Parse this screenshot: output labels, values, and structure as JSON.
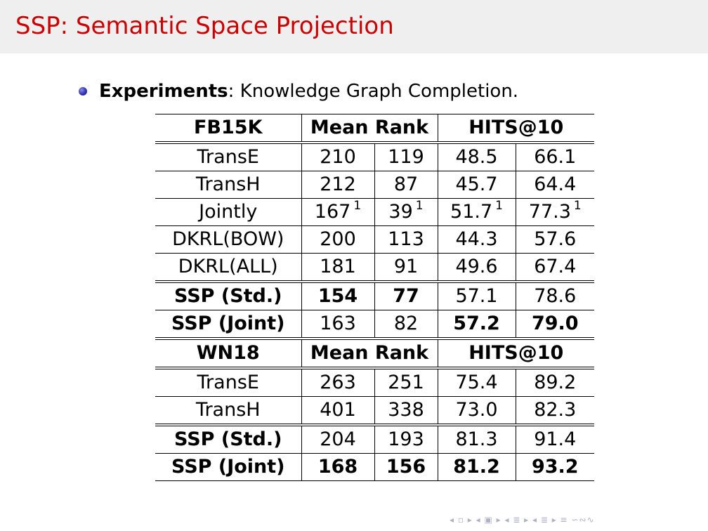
{
  "title": "SSP: Semantic Space Projection",
  "bullet": {
    "label": "Experiments",
    "text": ": Knowledge Graph Completion."
  },
  "tables": {
    "fb15k": {
      "header": [
        "FB15K",
        "Mean Rank",
        "HITS@10"
      ],
      "rows": [
        {
          "model": "TransE",
          "mr1": "210",
          "mr2": "119",
          "h1": "48.5",
          "h2": "66.1"
        },
        {
          "model": "TransH",
          "mr1": "212",
          "mr2": "87",
          "h1": "45.7",
          "h2": "64.4"
        },
        {
          "model": "Jointly",
          "mr1": "167",
          "mr2": "39",
          "h1": "51.7",
          "h2": "77.3",
          "sup": "1"
        },
        {
          "model": "DKRL(BOW)",
          "mr1": "200",
          "mr2": "113",
          "h1": "44.3",
          "h2": "57.6"
        },
        {
          "model": "DKRL(ALL)",
          "mr1": "181",
          "mr2": "91",
          "h1": "49.6",
          "h2": "67.4"
        },
        {
          "model": "SSP (Std.)",
          "mr1": "154",
          "mr2": "77",
          "h1": "57.1",
          "h2": "78.6"
        },
        {
          "model": "SSP (Joint)",
          "mr1": "163",
          "mr2": "82",
          "h1": "57.2",
          "h2": "79.0"
        }
      ]
    },
    "wn18": {
      "header": [
        "WN18",
        "Mean Rank",
        "HITS@10"
      ],
      "rows": [
        {
          "model": "TransE",
          "mr1": "263",
          "mr2": "251",
          "h1": "75.4",
          "h2": "89.2"
        },
        {
          "model": "TransH",
          "mr1": "401",
          "mr2": "338",
          "h1": "73.0",
          "h2": "82.3"
        },
        {
          "model": "SSP (Std.)",
          "mr1": "204",
          "mr2": "193",
          "h1": "81.3",
          "h2": "91.4"
        },
        {
          "model": "SSP (Joint)",
          "mr1": "168",
          "mr2": "156",
          "h1": "81.2",
          "h2": "93.2"
        }
      ]
    }
  },
  "nav_symbols": "◂ ▫ ▸ ◂ ▣ ▸ ◂ ≣ ▸ ◂ ≣ ▸ ≡ ∽∾∿"
}
